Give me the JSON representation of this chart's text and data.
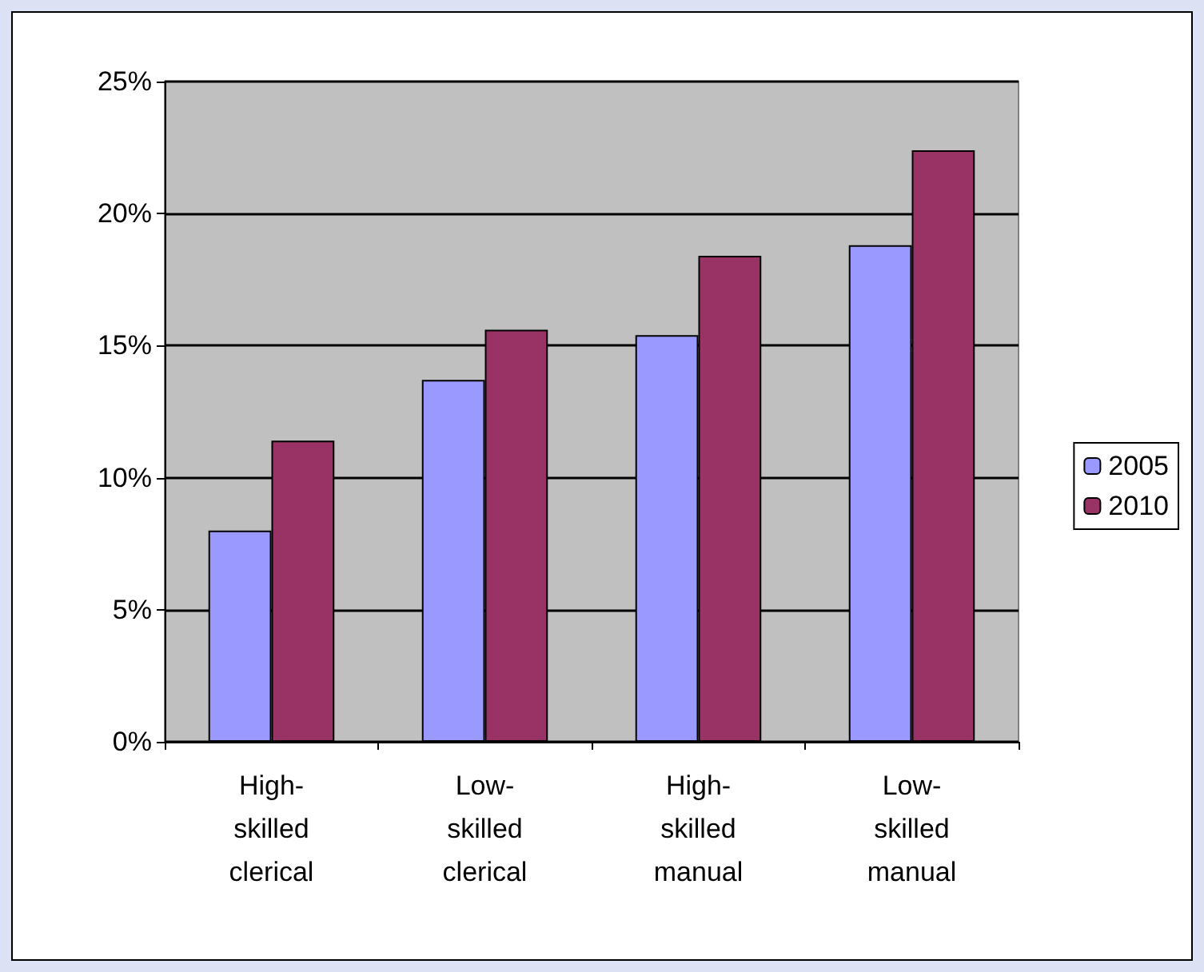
{
  "chart_data": {
    "type": "bar",
    "categories": [
      "High-skilled clerical",
      "Low-skilled clerical",
      "High-skilled manual",
      "Low-skilled manual"
    ],
    "series": [
      {
        "name": "2005",
        "color": "#9999ff",
        "values": [
          8.0,
          13.7,
          15.4,
          18.8
        ]
      },
      {
        "name": "2010",
        "color": "#993366",
        "values": [
          11.4,
          15.6,
          18.4,
          22.4
        ]
      }
    ],
    "ylim": [
      0,
      25
    ],
    "yticks": [
      {
        "value": 0,
        "label": "0%"
      },
      {
        "value": 5,
        "label": "5%"
      },
      {
        "value": 10,
        "label": "10%"
      },
      {
        "value": 15,
        "label": "15%"
      },
      {
        "value": 20,
        "label": "20%"
      },
      {
        "value": 25,
        "label": "25%"
      }
    ],
    "grid": "y",
    "legend": "right"
  }
}
